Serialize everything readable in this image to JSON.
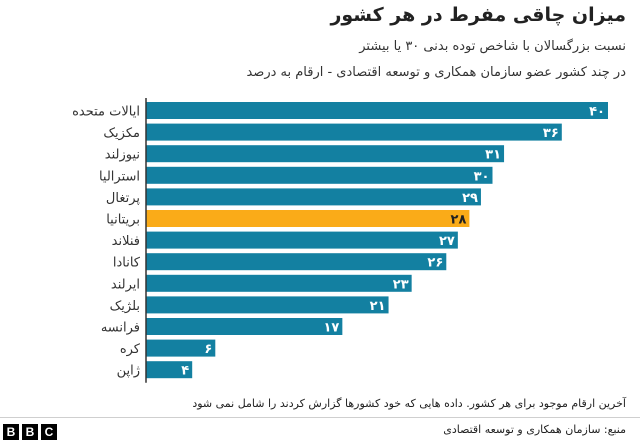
{
  "header": {
    "title": "میزان چاقی مفرط در هر کشور",
    "subtitle_line1": "نسبت بزرگسالان با شاخص توده بدنی ۳۰ یا بیشتر",
    "subtitle_line2": "در چند کشور عضو سازمان همکاری و توسعه اقتصادی - ارقام به درصد"
  },
  "footer": {
    "note": "آخرین ارقام موجود برای هر کشور. داده هایی که خود کشورها گزارش کردند را شامل نمی شود",
    "source": "منبع: سازمان همکاری و توسعه اقتصادی",
    "logo_letters": [
      "B",
      "B",
      "C"
    ]
  },
  "chart_data": {
    "type": "bar",
    "orientation": "horizontal",
    "categories": [
      "ایالات متحده",
      "مکزیک",
      "نیوزلند",
      "استرالیا",
      "پرتغال",
      "بریتانیا",
      "فنلاند",
      "کانادا",
      "ایرلند",
      "بلژیک",
      "فرانسه",
      "کره",
      "ژاپن"
    ],
    "values": [
      40,
      36,
      31,
      30,
      29,
      28,
      27,
      26,
      23,
      21,
      17,
      6,
      4
    ],
    "value_labels": [
      "۴۰",
      "۳۶",
      "۳۱",
      "۳۰",
      "۲۹",
      "۲۸",
      "۲۷",
      "۲۶",
      "۲۳",
      "۲۱",
      "۱۷",
      "۶",
      "۴"
    ],
    "highlight": "بریتانیا",
    "colors": {
      "default": "#1380A1",
      "highlight": "#FAAB18",
      "axis": "#333333"
    },
    "xlim": [
      0,
      40
    ],
    "grid": false,
    "legend": "none"
  }
}
